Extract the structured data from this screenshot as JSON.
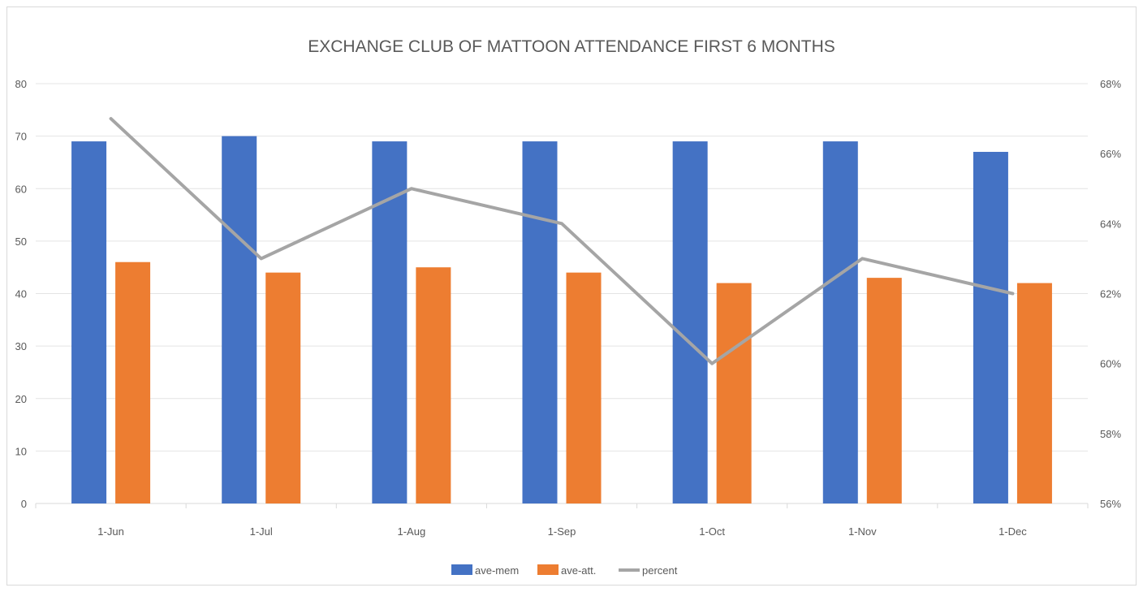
{
  "chart_data": {
    "type": "bar",
    "title": "EXCHANGE CLUB OF MATTOON ATTENDANCE FIRST 6 MONTHS",
    "categories": [
      "1-Jun",
      "1-Jul",
      "1-Aug",
      "1-Sep",
      "1-Oct",
      "1-Nov",
      "1-Dec"
    ],
    "series": [
      {
        "name": "ave-mem",
        "type": "bar",
        "axis": "primary",
        "color": "#4472c4",
        "values": [
          69,
          70,
          69,
          69,
          69,
          69,
          67
        ]
      },
      {
        "name": "ave-att.",
        "type": "bar",
        "axis": "primary",
        "color": "#ed7d31",
        "values": [
          46,
          44,
          45,
          44,
          42,
          43,
          42
        ]
      },
      {
        "name": "percent",
        "type": "line",
        "axis": "secondary",
        "color": "#a5a5a5",
        "values": [
          0.67,
          0.63,
          0.65,
          0.64,
          0.6,
          0.63,
          0.62
        ]
      }
    ],
    "ylim": [
      0,
      80
    ],
    "y_ticks": [
      "0",
      "10",
      "20",
      "30",
      "40",
      "50",
      "60",
      "70",
      "80"
    ],
    "y2lim": [
      0.56,
      0.68
    ],
    "y2_ticks": [
      "56%",
      "58%",
      "60%",
      "62%",
      "64%",
      "66%",
      "68%"
    ],
    "grid": true,
    "legend_position": "bottom"
  }
}
